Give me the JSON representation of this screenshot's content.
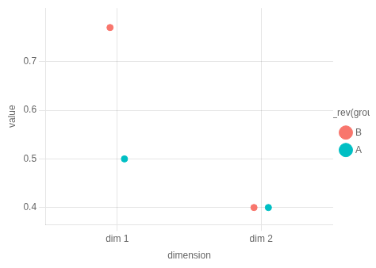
{
  "chart_data": {
    "type": "scatter",
    "categories": [
      "dim 1",
      "dim 2"
    ],
    "series": [
      {
        "name": "B",
        "color": "#F8766D",
        "values": [
          0.77,
          0.4
        ]
      },
      {
        "name": "A",
        "color": "#00BFC4",
        "values": [
          0.5,
          0.4
        ]
      }
    ],
    "xlabel": "dimension",
    "ylabel": "value",
    "legend_title": "fct_rev(group)",
    "ylim": [
      0.365,
      0.81
    ],
    "yticks": [
      0.4,
      0.5,
      0.6,
      0.7
    ],
    "grid": true,
    "legend": "right"
  }
}
